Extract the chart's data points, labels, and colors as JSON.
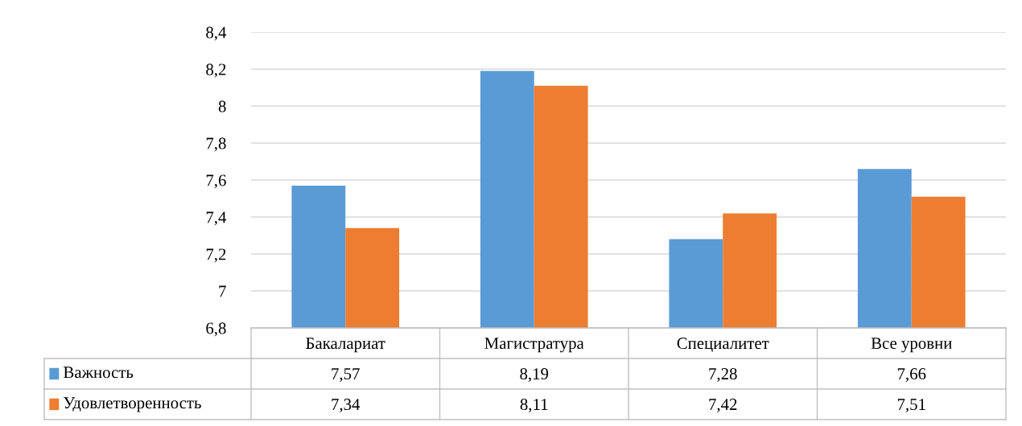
{
  "chart_data": {
    "type": "bar",
    "categories": [
      "Бакалариат",
      "Магистратура",
      "Специалитет",
      "Все уровни"
    ],
    "series": [
      {
        "name": "Важность",
        "color": "#5b9bd5",
        "values": [
          7.57,
          8.19,
          7.28,
          7.66
        ],
        "value_labels": [
          "7,57",
          "8,19",
          "7,28",
          "7,66"
        ]
      },
      {
        "name": "Удовлетворенность",
        "color": "#ed7d31",
        "values": [
          7.34,
          8.11,
          7.42,
          7.51
        ],
        "value_labels": [
          "7,34",
          "8,11",
          "7,42",
          "7,51"
        ]
      }
    ],
    "ylim": [
      6.8,
      8.4
    ],
    "yticks": [
      {
        "value": 6.8,
        "label": "6,8"
      },
      7,
      {
        "value": 7.2,
        "label": "7,2"
      },
      {
        "value": 7.4,
        "label": "7,4"
      },
      {
        "value": 7.6,
        "label": "7,6"
      },
      {
        "value": 7.8,
        "label": "7,8"
      },
      8,
      {
        "value": 8.2,
        "label": "8,2"
      },
      {
        "value": 8.4,
        "label": "8,4"
      }
    ],
    "grid": "y",
    "legend": "bottom"
  }
}
